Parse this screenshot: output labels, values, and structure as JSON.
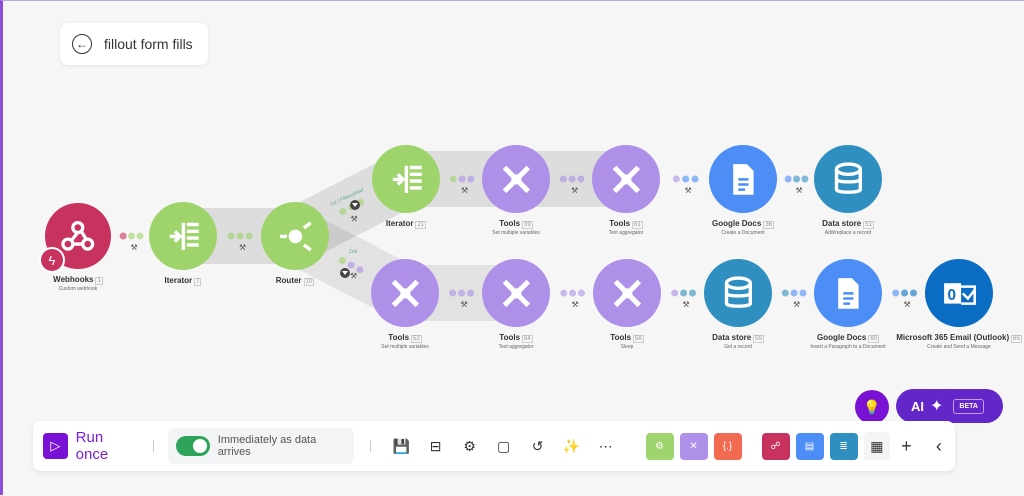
{
  "scenario": {
    "title": "fillout form fills",
    "back_icon": "arrow-left-icon"
  },
  "routes": [
    {
      "label": "1st | Filesupload"
    },
    {
      "label": "2nd"
    }
  ],
  "nodes": [
    {
      "app": "Webhooks",
      "num": "1",
      "sub": "Custom webhook",
      "icon": "webhook-icon",
      "color": "#c8325e"
    },
    {
      "app": "Iterator",
      "num": "7",
      "sub": "",
      "icon": "iterator-icon",
      "color": "#9fd46c"
    },
    {
      "app": "Router",
      "num": "10",
      "sub": "",
      "icon": "router-icon",
      "color": "#9fd46c"
    },
    {
      "app": "Iterator",
      "num": "21",
      "sub": "",
      "icon": "iterator-icon",
      "color": "#9fd46c"
    },
    {
      "app": "Tools",
      "num": "39",
      "sub": "Set multiple variables",
      "icon": "tools-icon",
      "color": "#ae90e8"
    },
    {
      "app": "Tools",
      "num": "61",
      "sub": "Text aggregator",
      "icon": "tools-icon",
      "color": "#ae90e8"
    },
    {
      "app": "Google Docs",
      "num": "36",
      "sub": "Create a Document",
      "icon": "document-icon",
      "color": "#4c8df6"
    },
    {
      "app": "Data store",
      "num": "51",
      "sub": "Add/replace a record",
      "icon": "database-icon",
      "color": "#2e8fc0"
    },
    {
      "app": "Tools",
      "num": "52",
      "sub": "Set multiple variables",
      "icon": "tools-icon",
      "color": "#ae90e8"
    },
    {
      "app": "Tools",
      "num": "64",
      "sub": "Text aggregator",
      "icon": "tools-icon",
      "color": "#ae90e8"
    },
    {
      "app": "Tools",
      "num": "58",
      "sub": "Sleep",
      "icon": "tools-icon",
      "color": "#ae90e8"
    },
    {
      "app": "Data store",
      "num": "59",
      "sub": "Get a record",
      "icon": "database-icon",
      "color": "#2e8fc0"
    },
    {
      "app": "Google Docs",
      "num": "60",
      "sub": "Insert a Paragraph to a Document",
      "icon": "document-icon",
      "color": "#4c8df6"
    },
    {
      "app": "Microsoft 365 Email (Outlook)",
      "num": "65",
      "sub": "Create and Send a Message",
      "icon": "outlook-icon",
      "color": "#0b6cc4"
    }
  ],
  "toolbar": {
    "run_once": "Run once",
    "schedule": "Immediately as data arrives",
    "schedule_on": true,
    "icons": [
      "save-icon",
      "flow-control-icon",
      "settings-icon",
      "notes-icon",
      "undo-icon",
      "magic-wand-icon",
      "more-icon"
    ],
    "apps": [
      {
        "icon": "gear-icon",
        "color": "#a0d46e"
      },
      {
        "icon": "tools-icon",
        "color": "#ae90e8"
      },
      {
        "icon": "text-parser-icon",
        "color": "#f36a52",
        "text": "{.}"
      },
      {
        "icon": "webhook-icon",
        "color": "#c8325e"
      },
      {
        "icon": "document-icon",
        "color": "#4c8df6"
      },
      {
        "icon": "database-icon",
        "color": "#2e8fc0"
      }
    ],
    "all_apps_icon": "grid-icon",
    "add_icon": "plus-icon",
    "collapse_icon": "chevron-left-icon"
  },
  "ai": {
    "label": "AI",
    "badge": "BETA",
    "tip_icon": "lightbulb-icon",
    "sparkle_icon": "sparkle-icon"
  }
}
